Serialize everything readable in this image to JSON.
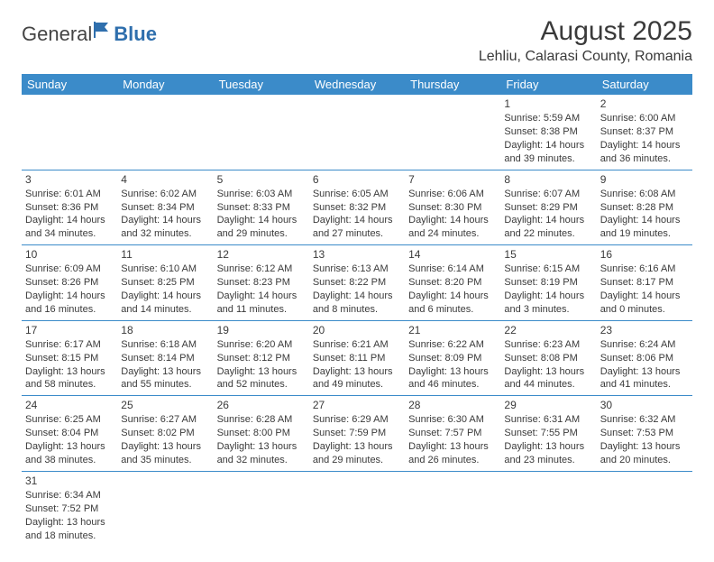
{
  "logo": {
    "text1": "General",
    "text2": "Blue"
  },
  "title": "August 2025",
  "location": "Lehliu, Calarasi County, Romania",
  "colors": {
    "header_bg": "#3b8bc9",
    "header_text": "#ffffff",
    "text": "#3a3a3a",
    "rule": "#3b8bc9"
  },
  "weekdays": [
    "Sunday",
    "Monday",
    "Tuesday",
    "Wednesday",
    "Thursday",
    "Friday",
    "Saturday"
  ],
  "weeks": [
    [
      null,
      null,
      null,
      null,
      null,
      {
        "n": "1",
        "sr": "Sunrise: 5:59 AM",
        "ss": "Sunset: 8:38 PM",
        "dl": "Daylight: 14 hours and 39 minutes."
      },
      {
        "n": "2",
        "sr": "Sunrise: 6:00 AM",
        "ss": "Sunset: 8:37 PM",
        "dl": "Daylight: 14 hours and 36 minutes."
      }
    ],
    [
      {
        "n": "3",
        "sr": "Sunrise: 6:01 AM",
        "ss": "Sunset: 8:36 PM",
        "dl": "Daylight: 14 hours and 34 minutes."
      },
      {
        "n": "4",
        "sr": "Sunrise: 6:02 AM",
        "ss": "Sunset: 8:34 PM",
        "dl": "Daylight: 14 hours and 32 minutes."
      },
      {
        "n": "5",
        "sr": "Sunrise: 6:03 AM",
        "ss": "Sunset: 8:33 PM",
        "dl": "Daylight: 14 hours and 29 minutes."
      },
      {
        "n": "6",
        "sr": "Sunrise: 6:05 AM",
        "ss": "Sunset: 8:32 PM",
        "dl": "Daylight: 14 hours and 27 minutes."
      },
      {
        "n": "7",
        "sr": "Sunrise: 6:06 AM",
        "ss": "Sunset: 8:30 PM",
        "dl": "Daylight: 14 hours and 24 minutes."
      },
      {
        "n": "8",
        "sr": "Sunrise: 6:07 AM",
        "ss": "Sunset: 8:29 PM",
        "dl": "Daylight: 14 hours and 22 minutes."
      },
      {
        "n": "9",
        "sr": "Sunrise: 6:08 AM",
        "ss": "Sunset: 8:28 PM",
        "dl": "Daylight: 14 hours and 19 minutes."
      }
    ],
    [
      {
        "n": "10",
        "sr": "Sunrise: 6:09 AM",
        "ss": "Sunset: 8:26 PM",
        "dl": "Daylight: 14 hours and 16 minutes."
      },
      {
        "n": "11",
        "sr": "Sunrise: 6:10 AM",
        "ss": "Sunset: 8:25 PM",
        "dl": "Daylight: 14 hours and 14 minutes."
      },
      {
        "n": "12",
        "sr": "Sunrise: 6:12 AM",
        "ss": "Sunset: 8:23 PM",
        "dl": "Daylight: 14 hours and 11 minutes."
      },
      {
        "n": "13",
        "sr": "Sunrise: 6:13 AM",
        "ss": "Sunset: 8:22 PM",
        "dl": "Daylight: 14 hours and 8 minutes."
      },
      {
        "n": "14",
        "sr": "Sunrise: 6:14 AM",
        "ss": "Sunset: 8:20 PM",
        "dl": "Daylight: 14 hours and 6 minutes."
      },
      {
        "n": "15",
        "sr": "Sunrise: 6:15 AM",
        "ss": "Sunset: 8:19 PM",
        "dl": "Daylight: 14 hours and 3 minutes."
      },
      {
        "n": "16",
        "sr": "Sunrise: 6:16 AM",
        "ss": "Sunset: 8:17 PM",
        "dl": "Daylight: 14 hours and 0 minutes."
      }
    ],
    [
      {
        "n": "17",
        "sr": "Sunrise: 6:17 AM",
        "ss": "Sunset: 8:15 PM",
        "dl": "Daylight: 13 hours and 58 minutes."
      },
      {
        "n": "18",
        "sr": "Sunrise: 6:18 AM",
        "ss": "Sunset: 8:14 PM",
        "dl": "Daylight: 13 hours and 55 minutes."
      },
      {
        "n": "19",
        "sr": "Sunrise: 6:20 AM",
        "ss": "Sunset: 8:12 PM",
        "dl": "Daylight: 13 hours and 52 minutes."
      },
      {
        "n": "20",
        "sr": "Sunrise: 6:21 AM",
        "ss": "Sunset: 8:11 PM",
        "dl": "Daylight: 13 hours and 49 minutes."
      },
      {
        "n": "21",
        "sr": "Sunrise: 6:22 AM",
        "ss": "Sunset: 8:09 PM",
        "dl": "Daylight: 13 hours and 46 minutes."
      },
      {
        "n": "22",
        "sr": "Sunrise: 6:23 AM",
        "ss": "Sunset: 8:08 PM",
        "dl": "Daylight: 13 hours and 44 minutes."
      },
      {
        "n": "23",
        "sr": "Sunrise: 6:24 AM",
        "ss": "Sunset: 8:06 PM",
        "dl": "Daylight: 13 hours and 41 minutes."
      }
    ],
    [
      {
        "n": "24",
        "sr": "Sunrise: 6:25 AM",
        "ss": "Sunset: 8:04 PM",
        "dl": "Daylight: 13 hours and 38 minutes."
      },
      {
        "n": "25",
        "sr": "Sunrise: 6:27 AM",
        "ss": "Sunset: 8:02 PM",
        "dl": "Daylight: 13 hours and 35 minutes."
      },
      {
        "n": "26",
        "sr": "Sunrise: 6:28 AM",
        "ss": "Sunset: 8:00 PM",
        "dl": "Daylight: 13 hours and 32 minutes."
      },
      {
        "n": "27",
        "sr": "Sunrise: 6:29 AM",
        "ss": "Sunset: 7:59 PM",
        "dl": "Daylight: 13 hours and 29 minutes."
      },
      {
        "n": "28",
        "sr": "Sunrise: 6:30 AM",
        "ss": "Sunset: 7:57 PM",
        "dl": "Daylight: 13 hours and 26 minutes."
      },
      {
        "n": "29",
        "sr": "Sunrise: 6:31 AM",
        "ss": "Sunset: 7:55 PM",
        "dl": "Daylight: 13 hours and 23 minutes."
      },
      {
        "n": "30",
        "sr": "Sunrise: 6:32 AM",
        "ss": "Sunset: 7:53 PM",
        "dl": "Daylight: 13 hours and 20 minutes."
      }
    ],
    [
      {
        "n": "31",
        "sr": "Sunrise: 6:34 AM",
        "ss": "Sunset: 7:52 PM",
        "dl": "Daylight: 13 hours and 18 minutes."
      },
      null,
      null,
      null,
      null,
      null,
      null
    ]
  ]
}
